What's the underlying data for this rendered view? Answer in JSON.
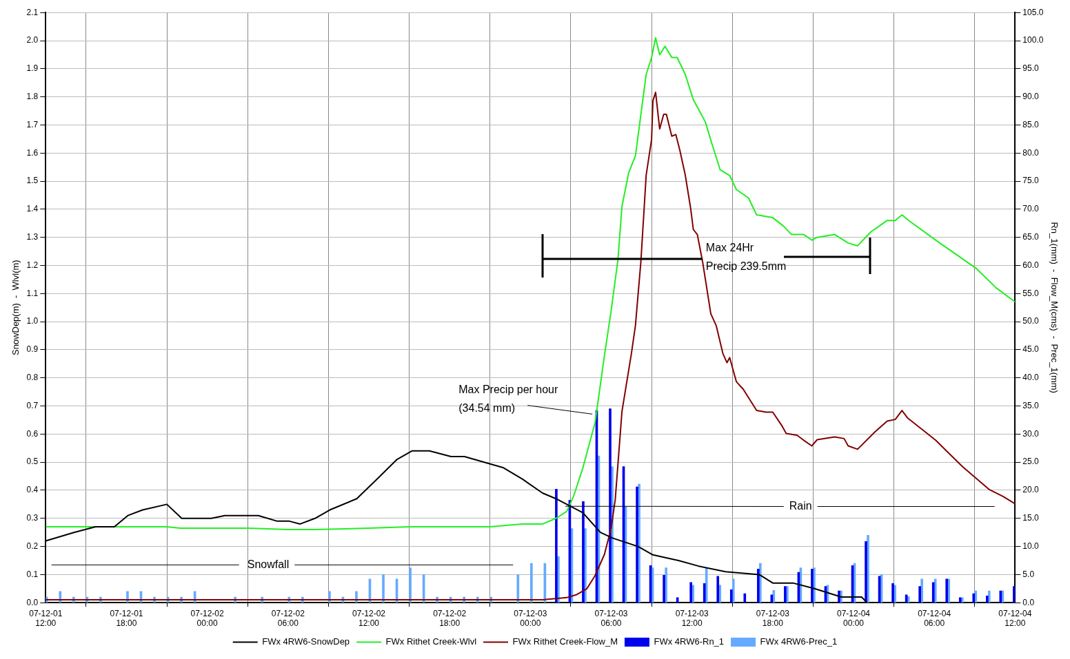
{
  "chart_data": {
    "type": "line",
    "ylabel": "SnowDep(m)  -  Wlvl(m)",
    "y2label": "Rn_1(mm)  -  Flow_M(cms)  -  Prec_1(mm)",
    "xlim": [
      "--12-01T12:00",
      "--12-04T12:00"
    ],
    "xticks": [
      {
        "value": "--12-01T12:00",
        "label": "07-12-01 12:00"
      },
      {
        "value": "--12-01T18:00",
        "label": "07-12-01 18:00"
      },
      {
        "value": "--12-02T00:00",
        "label": "07-12-02 00:00"
      },
      {
        "value": "--12-02T06:00",
        "label": "07-12-02 06:00"
      },
      {
        "value": "--12-02T12:00",
        "label": "07-12-02 12:00"
      },
      {
        "value": "--12-02T18:00",
        "label": "07-12-02 18:00"
      },
      {
        "value": "--12-03T00:00",
        "label": "07-12-03 00:00"
      },
      {
        "value": "--12-03T06:00",
        "label": "07-12-03 06:00"
      },
      {
        "value": "--12-03T12:00",
        "label": "07-12-03 12:00"
      },
      {
        "value": "--12-03T18:00",
        "label": "07-12-03 18:00"
      },
      {
        "value": "--12-04T00:00",
        "label": "07-12-04 00:00"
      },
      {
        "value": "--12-04T06:00",
        "label": "07-12-04 06:00"
      },
      {
        "value": "--12-04T12:00",
        "label": "07-12-04 12:00"
      }
    ],
    "ylim": [
      0,
      2.1
    ],
    "yticks": [
      {
        "value": 0,
        "label": "0.0"
      },
      {
        "value": 0.1,
        "label": "0.1"
      },
      {
        "value": 0.2,
        "label": "0.2"
      },
      {
        "value": 0.3,
        "label": "0.3"
      },
      {
        "value": 0.4,
        "label": "0.4"
      },
      {
        "value": 0.5,
        "label": "0.5"
      },
      {
        "value": 0.6,
        "label": "0.6"
      },
      {
        "value": 0.7,
        "label": "0.7"
      },
      {
        "value": 0.8,
        "label": "0.8"
      },
      {
        "value": 0.9,
        "label": "0.9"
      },
      {
        "value": 1,
        "label": "1.0"
      },
      {
        "value": 1.1,
        "label": "1.1"
      },
      {
        "value": 1.2,
        "label": "1.2"
      },
      {
        "value": 1.3,
        "label": "1.3"
      },
      {
        "value": 1.4,
        "label": "1.4"
      },
      {
        "value": 1.5,
        "label": "1.5"
      },
      {
        "value": 1.6,
        "label": "1.6"
      },
      {
        "value": 1.7,
        "label": "1.7"
      },
      {
        "value": 1.8,
        "label": "1.8"
      },
      {
        "value": 1.9,
        "label": "1.9"
      },
      {
        "value": 2,
        "label": "2.0"
      },
      {
        "value": 2.1,
        "label": "2.1"
      }
    ],
    "y2lim": [
      0,
      105
    ],
    "y2ticks": [
      {
        "value": 0,
        "label": "0.0"
      },
      {
        "value": 5,
        "label": "5.0"
      },
      {
        "value": 10,
        "label": "10.0"
      },
      {
        "value": 15,
        "label": "15.0"
      },
      {
        "value": 20,
        "label": "20.0"
      },
      {
        "value": 25,
        "label": "25.0"
      },
      {
        "value": 30,
        "label": "30.0"
      },
      {
        "value": 35,
        "label": "35.0"
      },
      {
        "value": 40,
        "label": "40.0"
      },
      {
        "value": 45,
        "label": "45.0"
      },
      {
        "value": 50,
        "label": "50.0"
      },
      {
        "value": 55,
        "label": "55.0"
      },
      {
        "value": 60,
        "label": "60.0"
      },
      {
        "value": 65,
        "label": "65.0"
      },
      {
        "value": 70,
        "label": "70.0"
      },
      {
        "value": 75,
        "label": "75.0"
      },
      {
        "value": 80,
        "label": "80.0"
      },
      {
        "value": 85,
        "label": "85.0"
      },
      {
        "value": 90,
        "label": "90.0"
      },
      {
        "value": 95,
        "label": "95.0"
      },
      {
        "value": 100,
        "label": "100.0"
      },
      {
        "value": 105,
        "label": "105.0"
      }
    ],
    "grid": true,
    "legend": "bottom",
    "series": [
      {
        "name": "FWx 4RW6-SnowDep",
        "color": "#000000",
        "x": [
          "--12-01T12:00",
          "--12-01T14:06",
          "--12-01T15:42",
          "--12-01T17:06",
          "--12-01T18:06",
          "--12-01T19:12",
          "--12-01T21:00",
          "--12-01T22:06",
          "--12-02T00:18",
          "--12-02T01:18",
          "--12-02T02:30",
          "--12-02T03:48",
          "--12-02T05:12",
          "--12-02T06:06",
          "--12-02T06:54",
          "--12-02T08:00",
          "--12-02T09:06",
          "--12-02T11:06",
          "--12-02T12:24",
          "--12-02T14:06",
          "--12-02T15:12",
          "--12-02T16:30",
          "--12-02T18:06",
          "--12-02T19:06",
          "--12-02T22:00",
          "--12-02T23:24",
          "--12-03T00:54",
          "--12-03T01:54",
          "--12-03T03:54",
          "--12-03T05:12",
          "--12-03T06:06",
          "--12-03T08:00",
          "--12-03T09:06",
          "--12-03T11:00",
          "--12-03T12:30",
          "--12-03T14:30",
          "--12-03T17:00",
          "--12-03T18:00",
          "--12-03T19:30",
          "--12-03T21:06",
          "--12-03T23:06",
          "--12-04T00:36",
          "--12-04T01:00"
        ],
        "values": [
          0.22,
          0.25,
          0.27,
          0.27,
          0.31,
          0.33,
          0.35,
          0.3,
          0.3,
          0.31,
          0.31,
          0.31,
          0.29,
          0.29,
          0.28,
          0.3,
          0.33,
          0.37,
          0.43,
          0.51,
          0.54,
          0.54,
          0.52,
          0.52,
          0.48,
          0.44,
          0.39,
          0.37,
          0.32,
          0.25,
          0.23,
          0.2,
          0.17,
          0.15,
          0.13,
          0.11,
          0.1,
          0.07,
          0.07,
          0.05,
          0.02,
          0.02,
          0.0
        ]
      },
      {
        "name": "FWx Rithet Creek-Wlvl",
        "color": "#22ee22",
        "x": [
          "--12-01T12:00",
          "--12-01T15:00",
          "--12-01T18:00",
          "--12-01T21:00",
          "--12-01T22:00",
          "--12-02T00:00",
          "--12-02T03:00",
          "--12-02T06:00",
          "--12-02T08:00",
          "--12-02T12:00",
          "--12-02T15:00",
          "--12-02T18:00",
          "--12-02T21:00",
          "--12-02T23:24",
          "--12-03T00:54",
          "--12-03T01:54",
          "--12-03T02:42",
          "--12-03T03:12",
          "--12-03T03:54",
          "--12-03T04:48",
          "--12-03T05:30",
          "--12-03T06:00",
          "--12-03T06:30",
          "--12-03T06:48",
          "--12-03T07:18",
          "--12-03T07:48",
          "--12-03T08:36",
          "--12-03T09:00",
          "--12-03T09:18",
          "--12-03T09:36",
          "--12-03T10:00",
          "--12-03T10:30",
          "--12-03T10:54",
          "--12-03T11:30",
          "--12-03T12:06",
          "--12-03T13:00",
          "--12-03T13:30",
          "--12-03T14:06",
          "--12-03T14:48",
          "--12-03T15:18",
          "--12-03T16:12",
          "--12-03T16:48",
          "--12-03T18:00",
          "--12-03T18:48",
          "--12-03T19:24",
          "--12-03T20:18",
          "--12-03T20:54",
          "--12-03T21:18",
          "--12-03T22:36",
          "--12-03T23:36",
          "--12-04T00:18",
          "--12-04T01:18",
          "--12-04T02:30",
          "--12-04T03:06",
          "--12-04T03:36",
          "--12-04T04:06",
          "--12-04T06:24",
          "--12-04T07:36",
          "--12-04T09:06",
          "--12-04T10:36",
          "--12-04T12:00"
        ],
        "values": [
          0.27,
          0.27,
          0.27,
          0.27,
          0.265,
          0.265,
          0.265,
          0.26,
          0.26,
          0.265,
          0.27,
          0.27,
          0.27,
          0.28,
          0.28,
          0.3,
          0.325,
          0.378,
          0.48,
          0.64,
          0.88,
          1.04,
          1.22,
          1.41,
          1.53,
          1.59,
          1.88,
          1.94,
          2.01,
          1.95,
          1.98,
          1.94,
          1.94,
          1.88,
          1.79,
          1.71,
          1.63,
          1.54,
          1.52,
          1.47,
          1.44,
          1.38,
          1.37,
          1.34,
          1.31,
          1.31,
          1.29,
          1.3,
          1.31,
          1.28,
          1.27,
          1.32,
          1.36,
          1.36,
          1.38,
          1.36,
          1.28,
          1.24,
          1.19,
          1.12,
          1.07
        ]
      },
      {
        "name": "FWx 4RW6-Rn_1",
        "type": "bar",
        "axis": "y2",
        "color": "#0000ee",
        "x": [
          "--12-03T02:00",
          "--12-03T03:00",
          "--12-03T04:00",
          "--12-03T05:00",
          "--12-03T06:00",
          "--12-03T07:00",
          "--12-03T08:00",
          "--12-03T09:00",
          "--12-03T10:00",
          "--12-03T11:00",
          "--12-03T12:00",
          "--12-03T13:00",
          "--12-03T14:00",
          "--12-03T15:00",
          "--12-03T16:00",
          "--12-03T17:00",
          "--12-03T18:00",
          "--12-03T19:00",
          "--12-03T20:00",
          "--12-03T21:00",
          "--12-03T22:00",
          "--12-03T23:00",
          "--12-04T00:00",
          "--12-04T01:00",
          "--12-04T02:00",
          "--12-04T03:00",
          "--12-04T04:00",
          "--12-04T05:00",
          "--12-04T06:00",
          "--12-04T07:00",
          "--12-04T08:00",
          "--12-04T09:00",
          "--12-04T10:00",
          "--12-04T11:00",
          "--12-04T12:00"
        ],
        "values": [
          20.2,
          18.2,
          18.0,
          34.2,
          34.5,
          24.2,
          20.6,
          6.6,
          4.9,
          0.9,
          3.6,
          3.4,
          4.7,
          2.3,
          1.6,
          6.0,
          1.4,
          2.9,
          5.4,
          6.0,
          2.9,
          2.1,
          6.6,
          10.9,
          4.7,
          3.4,
          1.4,
          2.9,
          3.6,
          4.2,
          0.9,
          1.6,
          1.2,
          2.1,
          2.9
        ]
      },
      {
        "name": "FWx Rithet Creek-Flow_M",
        "axis": "y2",
        "color": "#800000",
        "x": [
          "--12-01T12:00",
          "--12-03T00:54",
          "--12-03T02:42",
          "--12-03T03:24",
          "--12-03T04:12",
          "--12-03T04:48",
          "--12-03T05:30",
          "--12-03T06:00",
          "--12-03T06:18",
          "--12-03T06:48",
          "--12-03T07:30",
          "--12-03T07:48",
          "--12-03T08:12",
          "--12-03T08:36",
          "--12-03T09:00",
          "--12-03T09:06",
          "--12-03T09:18",
          "--12-03T09:36",
          "--12-03T09:54",
          "--12-03T10:06",
          "--12-03T10:30",
          "--12-03T10:48",
          "--12-03T11:06",
          "--12-03T11:30",
          "--12-03T11:54",
          "--12-03T12:06",
          "--12-03T12:24",
          "--12-03T12:48",
          "--12-03T13:24",
          "--12-03T13:48",
          "--12-03T14:18",
          "--12-03T14:36",
          "--12-03T14:48",
          "--12-03T15:18",
          "--12-03T15:48",
          "--12-03T16:48",
          "--12-03T17:30",
          "--12-03T18:00",
          "--12-03T18:42",
          "--12-03T19:00",
          "--12-03T19:48",
          "--12-03T20:18",
          "--12-03T20:54",
          "--12-03T21:18",
          "--12-03T22:36",
          "--12-03T23:18",
          "--12-03T23:36",
          "--12-04T00:18",
          "--12-04T01:36",
          "--12-04T02:30",
          "--12-04T03:06",
          "--12-04T03:36",
          "--12-04T04:00",
          "--12-04T05:06",
          "--12-04T06:06",
          "--12-04T06:54",
          "--12-04T08:06",
          "--12-04T10:06",
          "--12-04T11:06",
          "--12-04T12:00"
        ],
        "values": [
          0.5,
          0.5,
          0.9,
          1.4,
          2.5,
          4.8,
          8.6,
          13.3,
          18.3,
          34.0,
          44.3,
          49.3,
          60.5,
          76.1,
          82.4,
          89.3,
          90.8,
          84.3,
          86.9,
          86.9,
          83.0,
          83.3,
          80.5,
          76.1,
          70.2,
          66.4,
          65.5,
          60.5,
          51.4,
          49.3,
          44.3,
          42.7,
          43.6,
          39.3,
          38.0,
          34.2,
          33.9,
          33.9,
          31.4,
          30.1,
          29.8,
          28.9,
          27.9,
          29.0,
          29.5,
          29.2,
          27.9,
          27.3,
          30.4,
          32.3,
          32.6,
          34.2,
          32.9,
          30.8,
          28.9,
          27.0,
          24.2,
          20.1,
          18.9,
          17.6
        ]
      },
      {
        "name": "FWx 4RW6-Prec_1",
        "type": "bar",
        "axis": "y2",
        "color": "#66aaff",
        "x": [
          "--12-01T12:00",
          "--12-01T13:00",
          "--12-01T14:00",
          "--12-01T15:00",
          "--12-01T16:00",
          "--12-01T18:00",
          "--12-01T19:00",
          "--12-01T20:00",
          "--12-01T21:00",
          "--12-01T22:00",
          "--12-01T23:00",
          "--12-02T02:00",
          "--12-02T04:00",
          "--12-02T06:00",
          "--12-02T07:00",
          "--12-02T09:00",
          "--12-02T10:00",
          "--12-02T11:00",
          "--12-02T12:00",
          "--12-02T13:00",
          "--12-02T14:00",
          "--12-02T15:00",
          "--12-02T16:00",
          "--12-02T17:00",
          "--12-02T18:00",
          "--12-02T19:00",
          "--12-02T20:00",
          "--12-02T21:00",
          "--12-02T23:00",
          "--12-03T00:00",
          "--12-03T01:00",
          "--12-03T02:00",
          "--12-03T03:00",
          "--12-03T04:00",
          "--12-03T05:00",
          "--12-03T06:00",
          "--12-03T07:00",
          "--12-03T08:00",
          "--12-03T09:00",
          "--12-03T10:00",
          "--12-03T12:00",
          "--12-03T13:00",
          "--12-03T14:00",
          "--12-03T15:00",
          "--12-03T17:00",
          "--12-03T18:00",
          "--12-03T19:00",
          "--12-03T20:00",
          "--12-03T21:00",
          "--12-03T22:00",
          "--12-03T23:00",
          "--12-04T00:00",
          "--12-04T01:00",
          "--12-04T02:00",
          "--12-04T03:00",
          "--12-04T04:00",
          "--12-04T05:00",
          "--12-04T06:00",
          "--12-04T07:00",
          "--12-04T08:00",
          "--12-04T09:00",
          "--12-04T10:00",
          "--12-04T11:00"
        ],
        "values": [
          1,
          2,
          1,
          1,
          1,
          2,
          2,
          1,
          1,
          1,
          2,
          1,
          1,
          1,
          1,
          2,
          1,
          2,
          4.2,
          5.0,
          4.2,
          6.2,
          5.0,
          1,
          1,
          1,
          1,
          1,
          5.0,
          7.0,
          7.0,
          8.2,
          13.2,
          13.2,
          26.1,
          24.2,
          17.1,
          21.1,
          6.2,
          6.2,
          3.1,
          6.2,
          3.1,
          4.2,
          7.0,
          2.2,
          2.9,
          6.2,
          6.2,
          3.1,
          2.1,
          7.0,
          12.0,
          5.0,
          3.1,
          1.1,
          4.2,
          4.2,
          4.2,
          0.9,
          2.1,
          2.1,
          2.1
        ]
      }
    ],
    "annotations": [
      "Snowfall",
      {
        "text": "Rain",
        "x": "--12-03T02:36",
        "y": 0.343
      },
      "Max 24Hr",
      "Precip 239.5mm",
      {
        "text": "Max Precip per hour",
        "x": "--12-03T04:36",
        "y": 0.671
      },
      "(34.54 mm)"
    ]
  }
}
